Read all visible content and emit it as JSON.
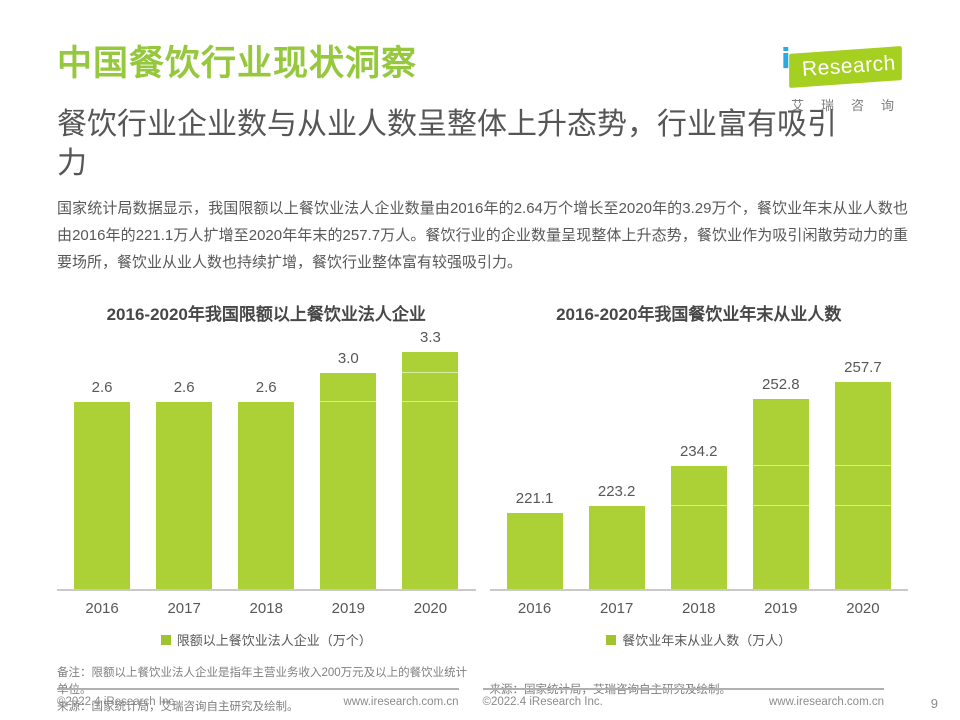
{
  "header": {
    "title": "中国餐饮行业现状洞察",
    "logo": {
      "i": "i",
      "research": "Research",
      "cn_name": "艾瑞咨询"
    }
  },
  "subtitle": "餐饮行业企业数与从业人数呈整体上升态势，行业富有吸引力",
  "body_text": "国家统计局数据显示，我国限额以上餐饮业法人企业数量由2016年的2.64万个增长至2020年的3.29万个，餐饮业年末从业人数也由2016年的221.1万人扩增至2020年年末的257.7万人。餐饮行业的企业数量呈现整体上升态势，餐饮业作为吸引闲散劳动力的重要场所，餐饮业从业人数也持续扩增，餐饮行业整体富有较强吸引力。",
  "chart_data": [
    {
      "type": "bar",
      "title": "2016-2020年我国限额以上餐饮业法人企业",
      "categories": [
        "2016",
        "2017",
        "2018",
        "2019",
        "2020"
      ],
      "values": [
        2.6,
        2.6,
        2.6,
        3.0,
        3.3
      ],
      "value_labels": [
        "2.6",
        "2.6",
        "2.6",
        "3.0",
        "3.3"
      ],
      "legend": "限额以上餐饮业法人企业（万个）",
      "ylabel": "万个",
      "ylim": [
        0,
        3.5
      ],
      "grid_overlay_levels": [
        2.6,
        3.0
      ],
      "bar_color": "#acd137",
      "legend_color": "#a0c42e",
      "grid": false,
      "legend_position": "bottom"
    },
    {
      "type": "bar",
      "title": "2016-2020年我国餐饮业年末从业人数",
      "categories": [
        "2016",
        "2017",
        "2018",
        "2019",
        "2020"
      ],
      "values": [
        221.1,
        223.2,
        234.2,
        252.8,
        257.7
      ],
      "value_labels": [
        "221.1",
        "223.2",
        "234.2",
        "252.8",
        "257.7"
      ],
      "legend": "餐饮业年末从业人数（万人）",
      "ylabel": "万人",
      "ylim": [
        200,
        270
      ],
      "grid_overlay_levels": [
        223.2,
        234.2
      ],
      "bar_color": "#acd137",
      "legend_color": "#a0c42e",
      "grid": false,
      "legend_position": "bottom"
    }
  ],
  "notes": {
    "left": [
      "备注：限额以上餐饮业法人企业是指年主营业务收入200万元及以上的餐饮业统计单位。",
      "来源：国家统计局，艾瑞咨询自主研究及绘制。"
    ],
    "right": [
      "来源：国家统计局，艾瑞咨询自主研究及绘制。"
    ]
  },
  "footer": {
    "copyright": "©2022.4 iResearch Inc.",
    "website": "www.iresearch.com.cn",
    "page_number": "9"
  },
  "colors": {
    "title_green": "#95c83c",
    "bar_green": "#acd137",
    "logo_green": "#a6d021",
    "logo_i_blue": "#2ba9e0",
    "text_gray": "#595757",
    "axis_gray": "#c9c9c9"
  }
}
